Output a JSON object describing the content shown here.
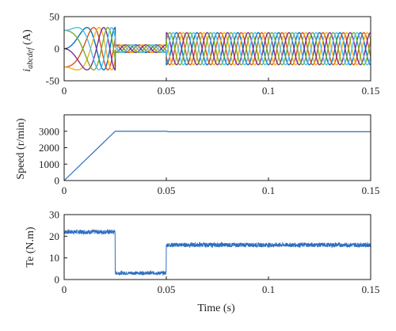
{
  "chart_data": [
    {
      "type": "line",
      "ylabel_main": "i",
      "ylabel_sub": "abcdef",
      "ylabel_unit": " (A)",
      "xlabel": "",
      "xlim": [
        0,
        0.15
      ],
      "ylim": [
        -50,
        50
      ],
      "xticks": [
        0,
        0.05,
        0.1,
        0.15
      ],
      "xtick_labels": [
        "0",
        "0.05",
        "0.1",
        "0.15"
      ],
      "yticks": [
        -50,
        0,
        50
      ],
      "ytick_labels": [
        "-50",
        "0",
        "50"
      ],
      "grid": false,
      "series_colors": [
        "#0072BD",
        "#D95319",
        "#EDB120",
        "#7E2F8E",
        "#77AC30",
        "#4DBEEE"
      ],
      "phases": [
        {
          "t_start": 0,
          "t_end": 0.025,
          "amplitude": 33,
          "frequency_start_hz": 0,
          "frequency_end_hz": 100
        },
        {
          "t_start": 0.025,
          "t_end": 0.05,
          "amplitude": 6,
          "frequency_hz": 100
        },
        {
          "t_start": 0.05,
          "t_end": 0.15,
          "amplitude": 25,
          "frequency_hz": 100
        }
      ]
    },
    {
      "type": "line",
      "ylabel": "Speed (r/min)",
      "xlabel": "",
      "xlim": [
        0,
        0.15
      ],
      "ylim": [
        0,
        4000
      ],
      "xticks": [
        0,
        0.05,
        0.1,
        0.15
      ],
      "xtick_labels": [
        "0",
        "0.05",
        "0.1",
        "0.15"
      ],
      "yticks": [
        0,
        1000,
        2000,
        3000
      ],
      "ytick_labels": [
        "0",
        "1000",
        "2000",
        "3000"
      ],
      "grid": false,
      "color": "#2E6FC0",
      "x": [
        0,
        0.025,
        0.05,
        0.051,
        0.15
      ],
      "y": [
        0,
        3000,
        3000,
        2970,
        2970
      ]
    },
    {
      "type": "line",
      "ylabel": "Te (N.m)",
      "xlabel": "Time (s)",
      "xlim": [
        0,
        0.15
      ],
      "ylim": [
        0,
        30
      ],
      "xticks": [
        0,
        0.05,
        0.1,
        0.15
      ],
      "xtick_labels": [
        "0",
        "0.05",
        "0.1",
        "0.15"
      ],
      "yticks": [
        0,
        10,
        20,
        30
      ],
      "ytick_labels": [
        "0",
        "10",
        "20",
        "30"
      ],
      "grid": false,
      "color": "#2E6FC0",
      "segments": [
        {
          "t_start": 0,
          "t_end": 0.025,
          "mean": 22,
          "ripple": 1.0
        },
        {
          "t_start": 0.025,
          "t_end": 0.05,
          "mean": 3,
          "ripple": 0.8
        },
        {
          "t_start": 0.05,
          "t_end": 0.15,
          "mean": 16,
          "ripple": 1.0
        }
      ]
    }
  ]
}
